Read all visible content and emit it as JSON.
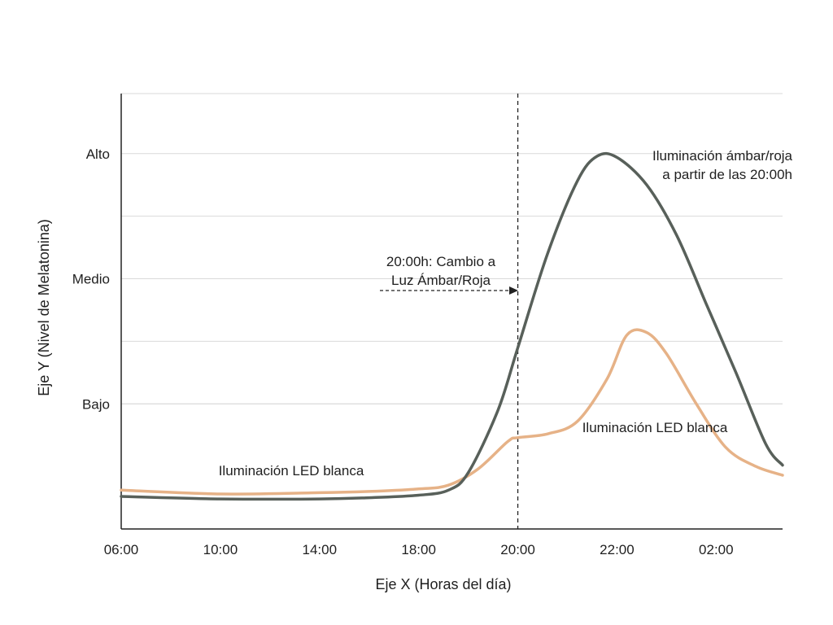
{
  "chart_data": {
    "type": "line",
    "xlabel": "Eje X (Horas del día)",
    "ylabel": "Eje Y (Nivel de Melatonina)",
    "x_tick_labels": [
      "06:00",
      "10:00",
      "14:00",
      "18:00",
      "20:00",
      "22:00",
      "02:00"
    ],
    "y_tick_labels": [
      "Bajo",
      "Medio",
      "Alto"
    ],
    "y_tick_values": [
      1,
      2,
      3
    ],
    "ylim": [
      0.0,
      3.48
    ],
    "xlim": [
      0,
      6.67
    ],
    "grid": true,
    "marker": {
      "x": 4,
      "label_lines": [
        "20:00h: Cambio a",
        "Luz Ámbar/Roja"
      ]
    },
    "series": [
      {
        "name": "Iluminación ámbar/roja a partir de las 20:00h",
        "label_lines": [
          "Iluminación ámbar/roja",
          "a partir de las 20:00h"
        ],
        "color": "#58605a",
        "points": [
          [
            0,
            0.26
          ],
          [
            1,
            0.24
          ],
          [
            2,
            0.24
          ],
          [
            2.5,
            0.25
          ],
          [
            3,
            0.27
          ],
          [
            3.3,
            0.31
          ],
          [
            3.5,
            0.45
          ],
          [
            3.8,
            0.95
          ],
          [
            4,
            1.45
          ],
          [
            4.3,
            2.2
          ],
          [
            4.6,
            2.78
          ],
          [
            4.8,
            2.98
          ],
          [
            5.0,
            2.97
          ],
          [
            5.3,
            2.75
          ],
          [
            5.6,
            2.35
          ],
          [
            5.9,
            1.8
          ],
          [
            6.2,
            1.25
          ],
          [
            6.5,
            0.68
          ],
          [
            6.67,
            0.51
          ]
        ]
      },
      {
        "name": "Iluminación LED blanca",
        "label_lines": [
          "Iluminación LED blanca"
        ],
        "color": "#e6b287",
        "points": [
          [
            0,
            0.31
          ],
          [
            1,
            0.28
          ],
          [
            2,
            0.29
          ],
          [
            2.5,
            0.3
          ],
          [
            3,
            0.32
          ],
          [
            3.3,
            0.35
          ],
          [
            3.6,
            0.48
          ],
          [
            3.9,
            0.7
          ],
          [
            4,
            0.73
          ],
          [
            4.3,
            0.76
          ],
          [
            4.6,
            0.86
          ],
          [
            4.9,
            1.2
          ],
          [
            5.1,
            1.55
          ],
          [
            5.3,
            1.57
          ],
          [
            5.5,
            1.4
          ],
          [
            5.8,
            1.0
          ],
          [
            6.1,
            0.65
          ],
          [
            6.4,
            0.5
          ],
          [
            6.67,
            0.43
          ]
        ]
      }
    ],
    "series_label_lines": [
      "Iluminación LED blanca"
    ]
  }
}
